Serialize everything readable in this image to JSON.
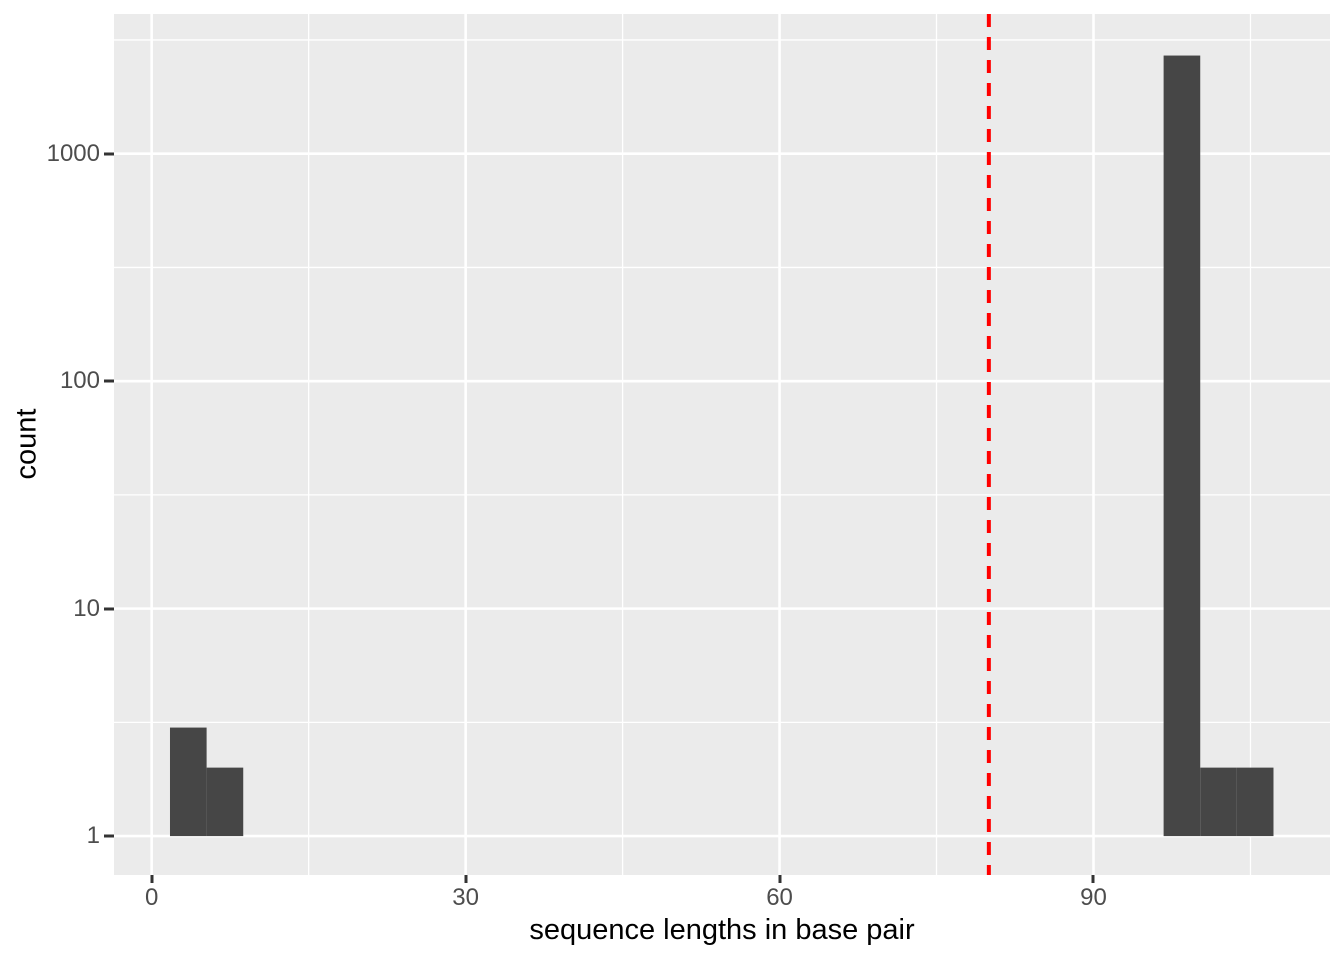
{
  "chart_data": {
    "type": "bar",
    "subtype": "histogram",
    "title": "",
    "xlabel": "sequence lengths in base pair",
    "ylabel": "count",
    "x_axis": {
      "lim": [
        -3.6,
        112.6
      ],
      "major_ticks": [
        0,
        30,
        60,
        90
      ],
      "tick_labels": [
        "0",
        "30",
        "60",
        "90"
      ],
      "minor_gridlines": [
        15,
        45,
        75,
        105
      ],
      "grid": true
    },
    "y_axis": {
      "scale": "log10",
      "log_lim": [
        -0.171,
        3.614
      ],
      "major_ticks": [
        1,
        10,
        100,
        1000
      ],
      "tick_labels": [
        "1",
        "10",
        "100",
        "1000"
      ],
      "minor_gridlines": [
        3.162,
        31.62,
        316.2,
        3162
      ],
      "grid": true
    },
    "bins": [
      {
        "x_start": 1.75,
        "x_end": 5.25,
        "count": 3
      },
      {
        "x_start": 5.25,
        "x_end": 8.75,
        "count": 2
      },
      {
        "x_start": 96.7,
        "x_end": 100.2,
        "count": 2700
      },
      {
        "x_start": 100.2,
        "x_end": 103.7,
        "count": 2
      },
      {
        "x_start": 103.7,
        "x_end": 107.2,
        "count": 2
      }
    ],
    "bar_baseline_count": 1,
    "vline": {
      "x": 80,
      "color": "#FF0000",
      "linetype": "dashed",
      "width": 4,
      "dash": 13,
      "gap": 10
    },
    "legend": null,
    "colors": {
      "bar_fill": "#464646",
      "panel_bg": "#EBEBEB",
      "grid_major": "#FFFFFF",
      "grid_minor": "#FFFFFF",
      "tick_label": "#4D4D4D",
      "axis_title": "#000000",
      "tick_mark": "#333333",
      "background": "#FFFFFF"
    }
  }
}
